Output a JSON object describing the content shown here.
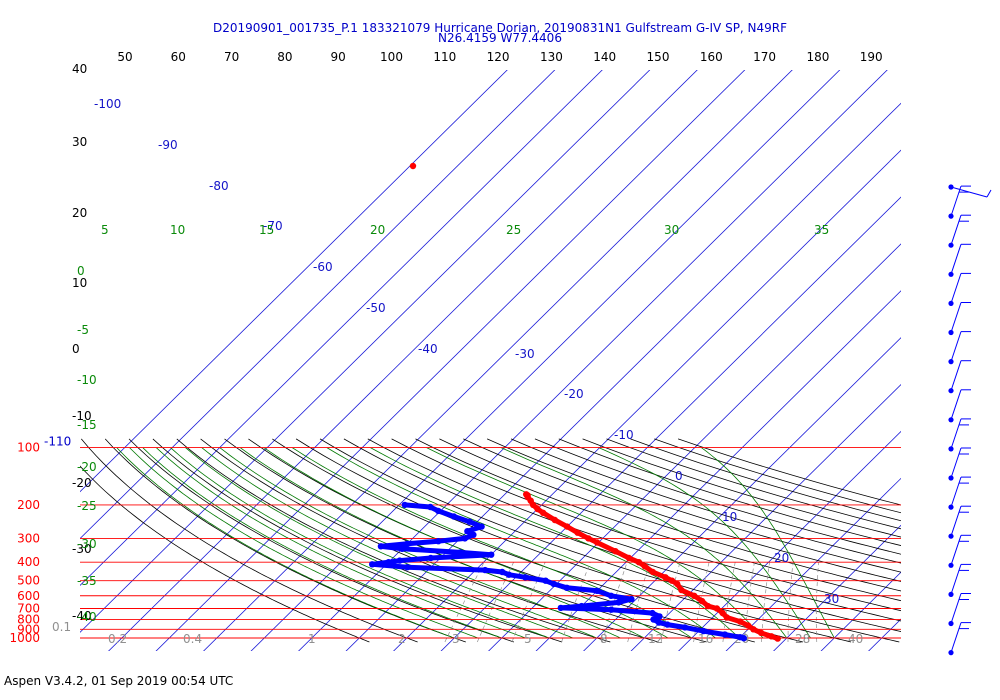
{
  "title": {
    "line1": "D20190901_001735_P.1 183321079 Hurricane Dorian, 20190831N1 Gulfstream G-IV SP, N49RF",
    "line2": "N26.4159 W77.4406"
  },
  "footer": "Aspen V3.4.2, 01 Sep 2019  00:54 UTC",
  "chart_data": {
    "type": "skew-t log-p",
    "pressure_levels": [
      100,
      200,
      300,
      400,
      500,
      600,
      700,
      800,
      900,
      1000
    ],
    "pressure_labels": [
      "100",
      "200",
      "300",
      "400",
      "500",
      "600",
      "700",
      "800",
      "900",
      "1000"
    ],
    "top_pressure_label": "-110",
    "top_axis_ticks": [
      "50",
      "60",
      "70",
      "80",
      "90",
      "100",
      "110",
      "120",
      "130",
      "140",
      "150",
      "160",
      "170",
      "180",
      "190"
    ],
    "isotherm_labels": [
      "-100",
      "-90",
      "-80",
      "-70",
      "-60",
      "-50",
      "-40",
      "-30",
      "-20",
      "-10",
      "0",
      "10",
      "20",
      "30"
    ],
    "isotherm_temps": [
      -100,
      -90,
      -80,
      -70,
      -60,
      -50,
      -40,
      -30,
      -20,
      -10,
      0,
      10,
      20,
      30
    ],
    "dry_adiabat_labels": [
      "40",
      "30",
      "20",
      "10",
      "0",
      "-10",
      "-20",
      "-30",
      "-40"
    ],
    "moist_adiabat_labels": [
      "5",
      "10",
      "15",
      "20",
      "25",
      "30",
      "35"
    ],
    "moist_adiabat_left_labels": [
      "0",
      "-5",
      "-10",
      "-15",
      "-20",
      "-25",
      "-30",
      "-35",
      "-40"
    ],
    "mixing_ratio_labels": [
      "0.1",
      "0.2",
      "0.4",
      "1",
      "2",
      "3",
      "5",
      "8",
      "12",
      "16",
      "20",
      "28",
      "40"
    ],
    "temperature_profile": {
      "name": "temperature",
      "color": "#ff0000",
      "points": [
        {
          "p": 176,
          "t": -55.5
        },
        {
          "p": 178,
          "t": -55.0
        },
        {
          "p": 182,
          "t": -54.6
        },
        {
          "p": 190,
          "t": -53.2
        },
        {
          "p": 200,
          "t": -51.8
        },
        {
          "p": 210,
          "t": -50.0
        },
        {
          "p": 220,
          "t": -48.0
        },
        {
          "p": 240,
          "t": -44.0
        },
        {
          "p": 260,
          "t": -40.0
        },
        {
          "p": 280,
          "t": -36.5
        },
        {
          "p": 300,
          "t": -33.0
        },
        {
          "p": 315,
          "t": -30.3
        },
        {
          "p": 350,
          "t": -24.6
        },
        {
          "p": 380,
          "t": -20.3
        },
        {
          "p": 400,
          "t": -17.3
        },
        {
          "p": 420,
          "t": -15.2
        },
        {
          "p": 450,
          "t": -12.3
        },
        {
          "p": 480,
          "t": -8.5
        },
        {
          "p": 500,
          "t": -6.4
        },
        {
          "p": 520,
          "t": -4.6
        },
        {
          "p": 560,
          "t": -2.4
        },
        {
          "p": 600,
          "t": 1.5
        },
        {
          "p": 640,
          "t": 4.3
        },
        {
          "p": 680,
          "t": 6.6
        },
        {
          "p": 700,
          "t": 9.0
        },
        {
          "p": 740,
          "t": 11.2
        },
        {
          "p": 780,
          "t": 13.0
        },
        {
          "p": 820,
          "t": 16.7
        },
        {
          "p": 860,
          "t": 19.2
        },
        {
          "p": 900,
          "t": 21.1
        },
        {
          "p": 940,
          "t": 23.5
        },
        {
          "p": 980,
          "t": 26.4
        },
        {
          "p": 1007,
          "t": 28.2
        }
      ]
    },
    "dewpoint_profile": {
      "name": "dewpoint",
      "color": "#0000ff",
      "points": [
        {
          "p": 200,
          "t": -78.8
        },
        {
          "p": 205,
          "t": -73.0
        },
        {
          "p": 215,
          "t": -70.5
        },
        {
          "p": 230,
          "t": -66.0
        },
        {
          "p": 245,
          "t": -61.6
        },
        {
          "p": 260,
          "t": -58.0
        },
        {
          "p": 275,
          "t": -60.0
        },
        {
          "p": 287,
          "t": -58.0
        },
        {
          "p": 300,
          "t": -59.0
        },
        {
          "p": 310,
          "t": -64.0
        },
        {
          "p": 320,
          "t": -70.0
        },
        {
          "p": 330,
          "t": -75.0
        },
        {
          "p": 340,
          "t": -70.0
        },
        {
          "p": 355,
          "t": -57.0
        },
        {
          "p": 365,
          "t": -50.0
        },
        {
          "p": 380,
          "t": -62.0
        },
        {
          "p": 392,
          "t": -68.0
        },
        {
          "p": 400,
          "t": -70.0
        },
        {
          "p": 410,
          "t": -73.0
        },
        {
          "p": 425,
          "t": -65.0
        },
        {
          "p": 440,
          "t": -48.0
        },
        {
          "p": 450,
          "t": -44.0
        },
        {
          "p": 465,
          "t": -42.0
        },
        {
          "p": 480,
          "t": -38.0
        },
        {
          "p": 500,
          "t": -33.0
        },
        {
          "p": 520,
          "t": -30.6
        },
        {
          "p": 545,
          "t": -27.0
        },
        {
          "p": 565,
          "t": -20.0
        },
        {
          "p": 600,
          "t": -16.0
        },
        {
          "p": 625,
          "t": -11.0
        },
        {
          "p": 650,
          "t": -13.0
        },
        {
          "p": 680,
          "t": -20.0
        },
        {
          "p": 695,
          "t": -24.0
        },
        {
          "p": 710,
          "t": -13.0
        },
        {
          "p": 740,
          "t": -3.6
        },
        {
          "p": 770,
          "t": -1.4
        },
        {
          "p": 800,
          "t": -2.0
        },
        {
          "p": 830,
          "t": -0.2
        },
        {
          "p": 850,
          "t": 2.0
        },
        {
          "p": 880,
          "t": 6.3
        },
        {
          "p": 920,
          "t": 11.0
        },
        {
          "p": 960,
          "t": 16.3
        },
        {
          "p": 990,
          "t": 20.0
        },
        {
          "p": 1003,
          "t": 21.0
        }
      ]
    },
    "wind_barbs_count": 17
  }
}
